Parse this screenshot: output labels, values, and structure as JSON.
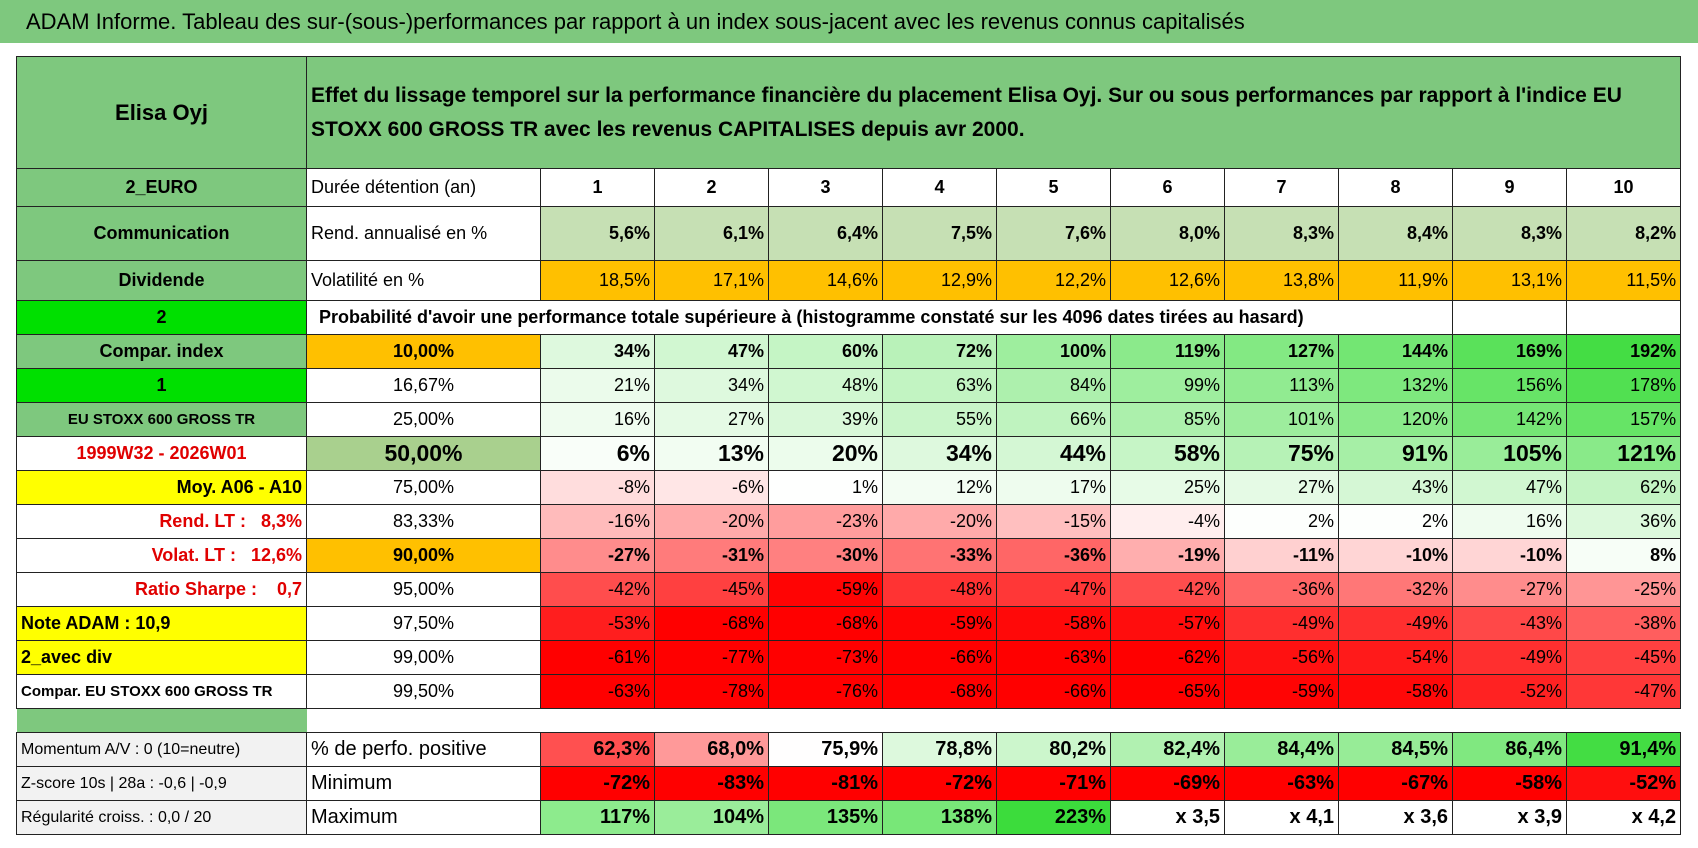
{
  "title": "ADAM Informe. Tableau des sur-(sous-)performances par rapport à un index sous-jacent avec les revenus connus capitalisés",
  "header": {
    "name": "Elisa Oyj",
    "description": "Effet du lissage temporel sur la performance financière du placement Elisa Oyj. Sur ou sous performances par rapport à l'indice EU STOXX 600 GROSS TR avec les revenus CAPITALISES depuis avr 2000."
  },
  "rows": [
    {
      "label": "2_EURO",
      "head": "Durée détention (an)",
      "cells": [
        "1",
        "2",
        "3",
        "4",
        "5",
        "6",
        "7",
        "8",
        "9",
        "10"
      ]
    },
    {
      "label": "Communication",
      "head": "Rend. annualisé en %",
      "cells": [
        "5,6%",
        "6,1%",
        "6,4%",
        "7,5%",
        "7,6%",
        "8,0%",
        "8,3%",
        "8,4%",
        "8,3%",
        "8,2%"
      ]
    },
    {
      "label": "Dividende",
      "head": "Volatilité en %",
      "cells": [
        "18,5%",
        "17,1%",
        "14,6%",
        "12,9%",
        "12,2%",
        "12,6%",
        "13,8%",
        "11,9%",
        "13,1%",
        "11,5%"
      ]
    },
    {
      "label": "2",
      "note": "Probabilité d'avoir une performance totale supérieure à (histogramme constaté sur les 4096 dates tirées au hasard)"
    },
    {
      "label": "Compar. index",
      "head": "10,00%",
      "cells": [
        "34%",
        "47%",
        "60%",
        "72%",
        "100%",
        "119%",
        "127%",
        "144%",
        "169%",
        "192%"
      ]
    },
    {
      "label": "1",
      "head": "16,67%",
      "cells": [
        "21%",
        "34%",
        "48%",
        "63%",
        "84%",
        "99%",
        "113%",
        "132%",
        "156%",
        "178%"
      ]
    },
    {
      "label": "EU STOXX 600 GROSS TR",
      "head": "25,00%",
      "cells": [
        "16%",
        "27%",
        "39%",
        "55%",
        "66%",
        "85%",
        "101%",
        "120%",
        "142%",
        "157%"
      ]
    },
    {
      "label": "1999W32 - 2026W01",
      "head": "50,00%",
      "cells": [
        "6%",
        "13%",
        "20%",
        "34%",
        "44%",
        "58%",
        "75%",
        "91%",
        "105%",
        "121%"
      ]
    },
    {
      "label": "Moy. A06 - A10",
      "head": "75,00%",
      "cells": [
        "-8%",
        "-6%",
        "1%",
        "12%",
        "17%",
        "25%",
        "27%",
        "43%",
        "47%",
        "62%"
      ]
    },
    {
      "label": "Rend. LT :   8,3%",
      "head": "83,33%",
      "cells": [
        "-16%",
        "-20%",
        "-23%",
        "-20%",
        "-15%",
        "-4%",
        "2%",
        "2%",
        "16%",
        "36%"
      ]
    },
    {
      "label": "Volat. LT :   12,6%",
      "head": "90,00%",
      "cells": [
        "-27%",
        "-31%",
        "-30%",
        "-33%",
        "-36%",
        "-19%",
        "-11%",
        "-10%",
        "-10%",
        "8%"
      ]
    },
    {
      "label": "Ratio Sharpe :    0,7",
      "head": "95,00%",
      "cells": [
        "-42%",
        "-45%",
        "-59%",
        "-48%",
        "-47%",
        "-42%",
        "-36%",
        "-32%",
        "-27%",
        "-25%"
      ]
    },
    {
      "label": "Note ADAM : 10,9",
      "head": "97,50%",
      "cells": [
        "-53%",
        "-68%",
        "-68%",
        "-59%",
        "-58%",
        "-57%",
        "-49%",
        "-49%",
        "-43%",
        "-38%"
      ]
    },
    {
      "label": "2_avec div",
      "head": "99,00%",
      "cells": [
        "-61%",
        "-77%",
        "-73%",
        "-66%",
        "-63%",
        "-62%",
        "-56%",
        "-54%",
        "-49%",
        "-45%"
      ]
    },
    {
      "label": "Compar. EU STOXX 600 GROSS TR",
      "head": "99,50%",
      "cells": [
        "-63%",
        "-78%",
        "-76%",
        "-68%",
        "-66%",
        "-65%",
        "-59%",
        "-58%",
        "-52%",
        "-47%"
      ]
    }
  ],
  "bottom": [
    {
      "label": "Momentum A/V : 0 (10=neutre)",
      "head": "% de perfo. positive",
      "cells": [
        "62,3%",
        "68,0%",
        "75,9%",
        "78,8%",
        "80,2%",
        "82,4%",
        "84,4%",
        "84,5%",
        "86,4%",
        "91,4%"
      ]
    },
    {
      "label": "Z-score 10s | 28a : -0,6 | -0,9",
      "head": "Minimum",
      "cells": [
        "-72%",
        "-83%",
        "-81%",
        "-72%",
        "-71%",
        "-69%",
        "-63%",
        "-67%",
        "-58%",
        "-52%"
      ]
    },
    {
      "label": "Régularité croiss. : 0,0 / 20",
      "head": "Maximum",
      "cells": [
        "117%",
        "104%",
        "135%",
        "138%",
        "223%",
        "x 3,5",
        "x 4,1",
        "x 3,6",
        "x 3,9",
        "x 4,2"
      ]
    }
  ]
}
